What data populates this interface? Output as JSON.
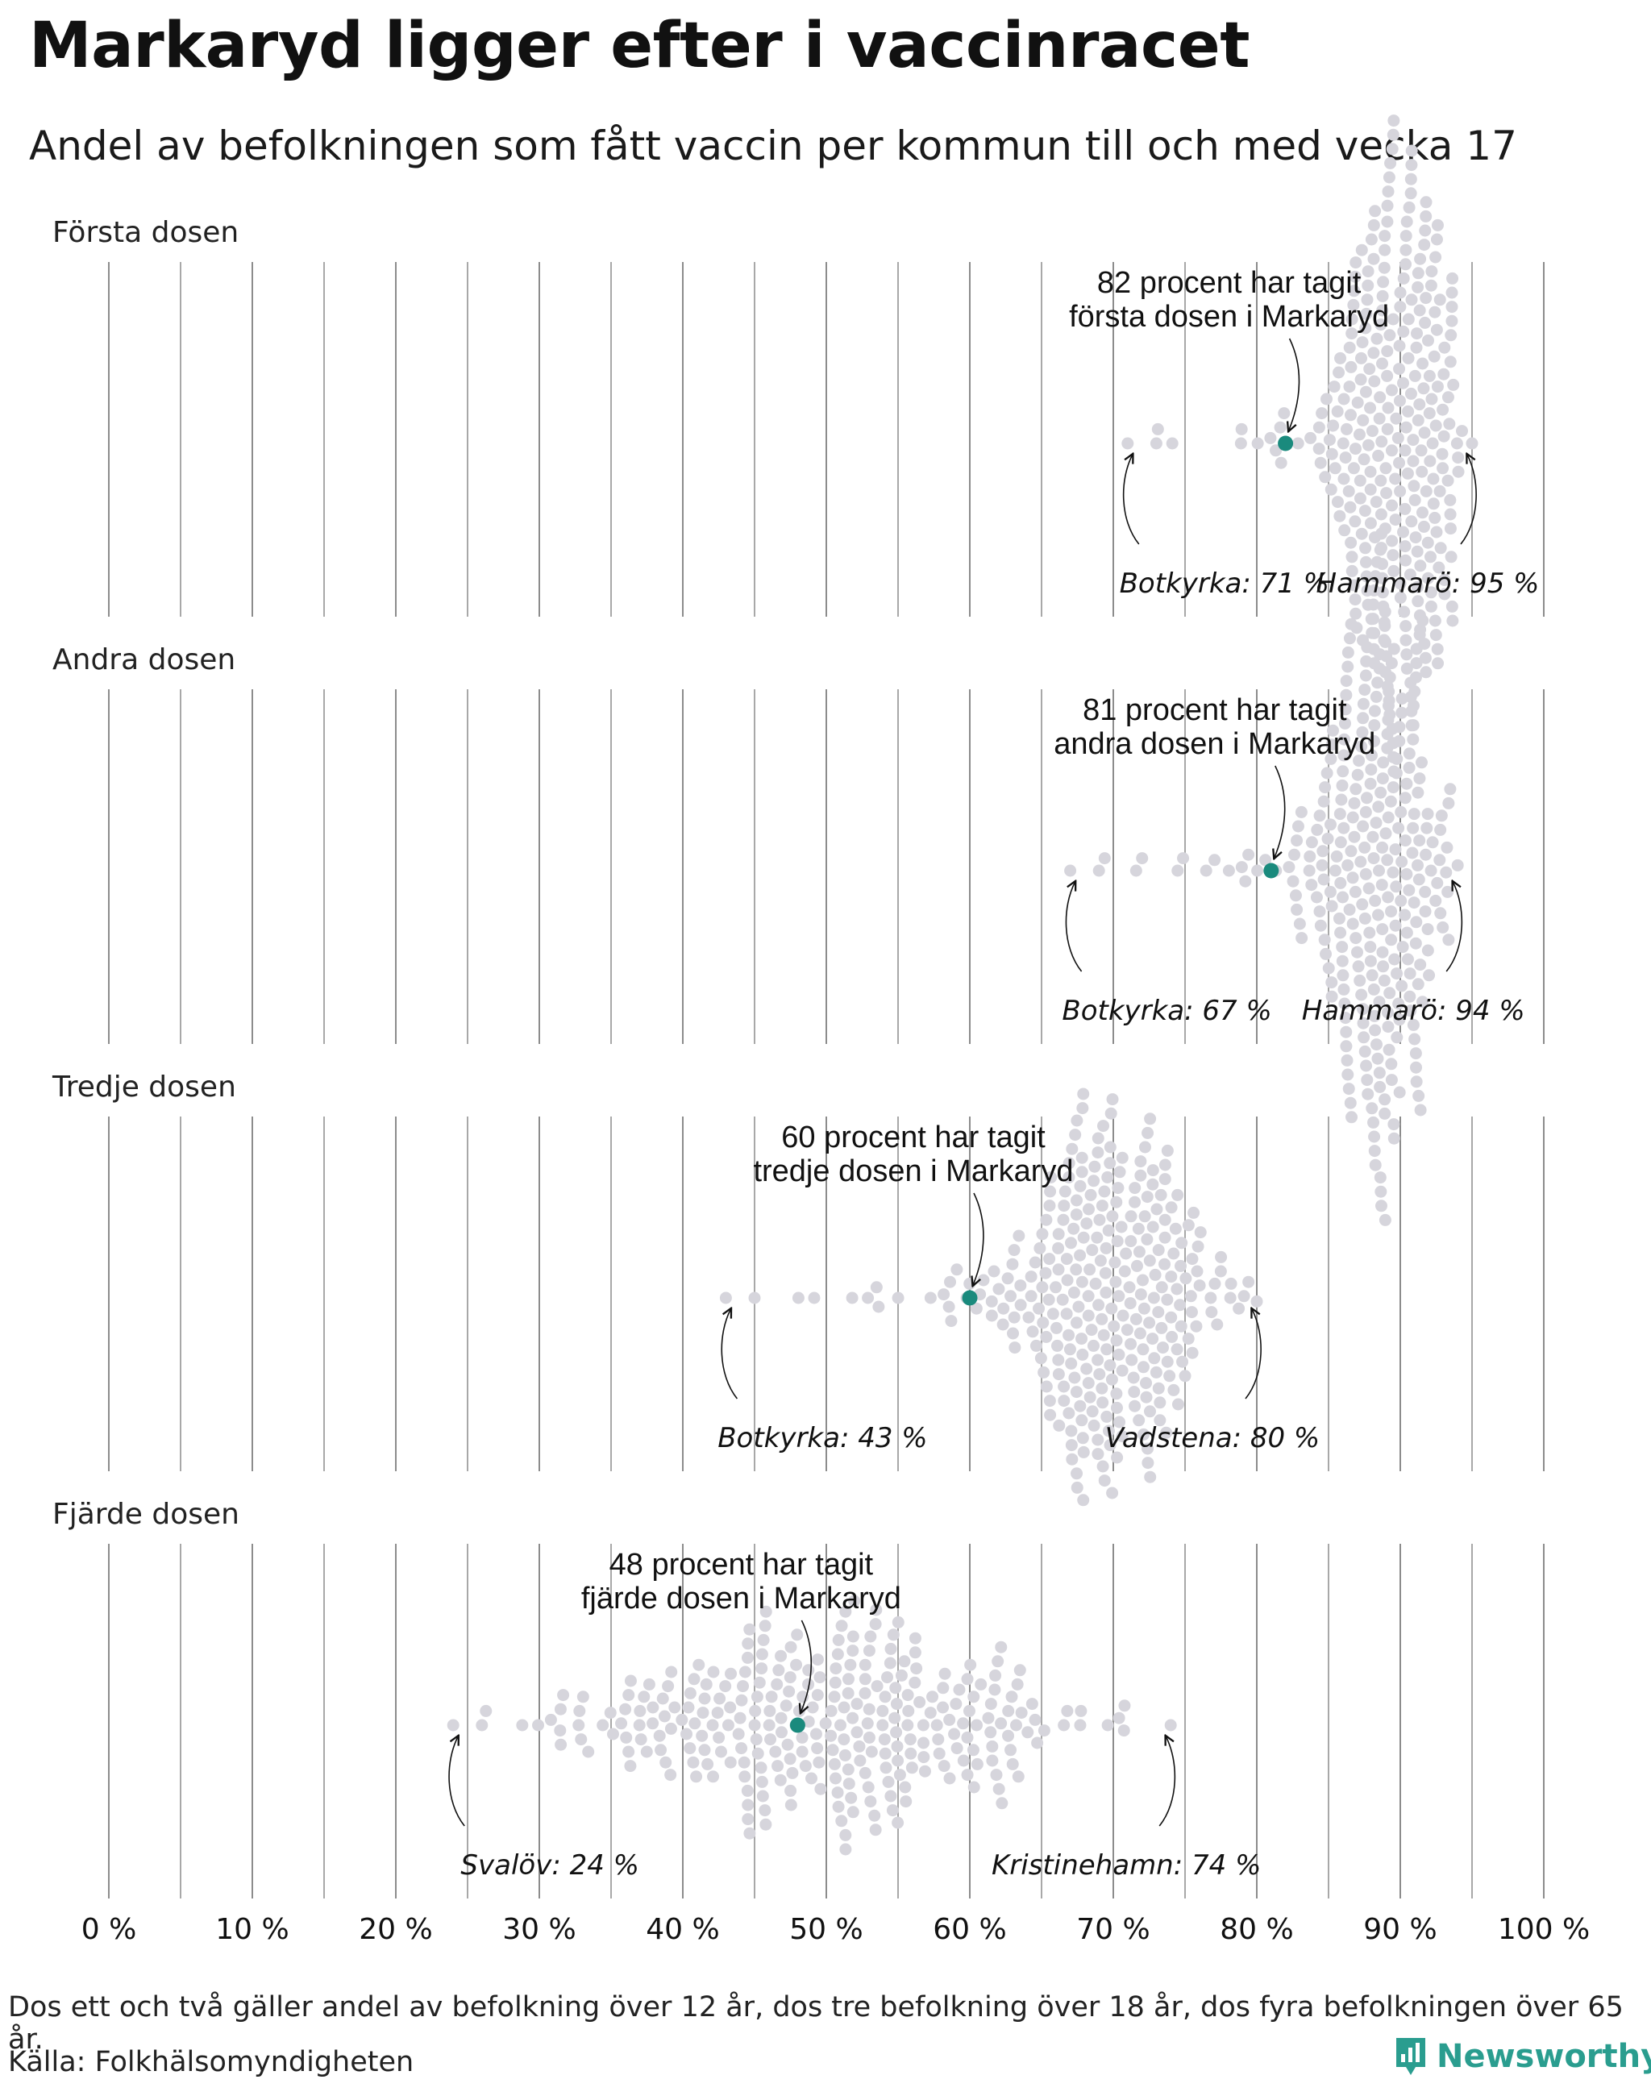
{
  "header": {
    "title": "Markaryd ligger efter i vaccinracet",
    "subtitle": "Andel av befolkningen som fått vaccin per kommun till och med vecka 17"
  },
  "colors": {
    "dot": "#d6d5dc",
    "highlight": "#1a8a7d",
    "gridline": "#8c8c8c",
    "brand": "#2a9d8f"
  },
  "chart_data": {
    "type": "scatter",
    "subtype": "beeswarm",
    "x_unit": "%",
    "xlim": [
      0,
      100
    ],
    "x_ticks": [
      0,
      10,
      20,
      30,
      40,
      50,
      60,
      70,
      80,
      90,
      100
    ],
    "x_tick_labels": [
      "0 %",
      "10 %",
      "20 %",
      "30 %",
      "40 %",
      "50 %",
      "60 %",
      "70 %",
      "80 %",
      "90 %",
      "100 %"
    ],
    "panels": [
      {
        "label": "Första dosen",
        "markaryd_value": 82,
        "callout": [
          "82 procent har tagit",
          "första dosen i Markaryd"
        ],
        "min": {
          "name": "Botkyrka",
          "value": 71,
          "label": "Botkyrka: 71 %"
        },
        "max": {
          "name": "Hammarö",
          "value": 95,
          "label": "Hammarö: 95 %"
        },
        "distribution": {
          "center": 89.7,
          "spread": 2.6,
          "count": 290
        }
      },
      {
        "label": "Andra dosen",
        "markaryd_value": 81,
        "callout": [
          "81 procent har tagit",
          "andra dosen i Markaryd"
        ],
        "min": {
          "name": "Botkyrka",
          "value": 67,
          "label": "Botkyrka: 67 %"
        },
        "max": {
          "name": "Hammarö",
          "value": 94,
          "label": "Hammarö: 94 %"
        },
        "distribution": {
          "center": 88.7,
          "spread": 2.8,
          "count": 290
        }
      },
      {
        "label": "Tredje dosen",
        "markaryd_value": 60,
        "callout": [
          "60 procent har tagit",
          "tredje dosen i Markaryd"
        ],
        "min": {
          "name": "Botkyrka",
          "value": 43,
          "label": "Botkyrka: 43 %"
        },
        "max": {
          "name": "Vadstena",
          "value": 80,
          "label": "Vadstena: 80 %"
        },
        "distribution": {
          "center": 69.3,
          "spread": 4.2,
          "count": 290
        }
      },
      {
        "label": "Fjärde dosen",
        "markaryd_value": 48,
        "callout": [
          "48 procent har tagit",
          "fjärde dosen i Markaryd"
        ],
        "min": {
          "name": "Svalöv",
          "value": 24,
          "label": "Svalöv: 24 %"
        },
        "max": {
          "name": "Kristinehamn",
          "value": 74,
          "label": "Kristinehamn: 74 %"
        },
        "distribution": {
          "center": 50.5,
          "spread": 8.5,
          "count": 290
        }
      }
    ]
  },
  "footer": {
    "note": "Dos ett och två gäller andel av befolkning över 12 år, dos tre befolkning över 18 år, dos fyra befolkningen över 65 år.",
    "source": "Källa: Folkhälsomyndigheten",
    "logo_text": "Newsworthy"
  }
}
